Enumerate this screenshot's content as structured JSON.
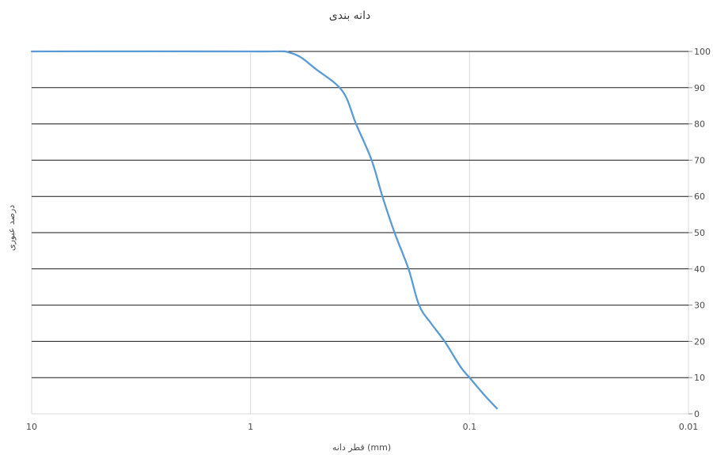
{
  "chart_data": {
    "type": "line",
    "title": "دانه بندی",
    "xlabel": "قطر دانه  (mm)",
    "ylabel": "درصد عبوری",
    "x_scale": "log",
    "x_reversed": true,
    "xlim": [
      10,
      0.01
    ],
    "ylim": [
      0,
      100
    ],
    "x_ticks": [
      "10",
      "1",
      "0.1",
      "0.01"
    ],
    "x_tick_values": [
      10,
      1,
      0.1,
      0.01
    ],
    "y_ticks": [
      "0",
      "10",
      "20",
      "30",
      "40",
      "50",
      "60",
      "70",
      "80",
      "90",
      "100"
    ],
    "y_tick_values": [
      0,
      10,
      20,
      30,
      40,
      50,
      60,
      70,
      80,
      90,
      100
    ],
    "y_axis_side": "right",
    "grid": true,
    "legend": "none",
    "series": [
      {
        "color": "#5b9bd5",
        "x": [
          10,
          1,
          0.65,
          0.5,
          0.38,
          0.33,
          0.28,
          0.25,
          0.22,
          0.19,
          0.17,
          0.15,
          0.13,
          0.11,
          0.1,
          0.085,
          0.075
        ],
        "y": [
          100,
          100,
          99.5,
          95,
          89,
          80,
          70,
          60,
          50,
          40,
          30,
          25,
          20,
          13,
          10,
          5,
          1.5
        ]
      }
    ]
  }
}
